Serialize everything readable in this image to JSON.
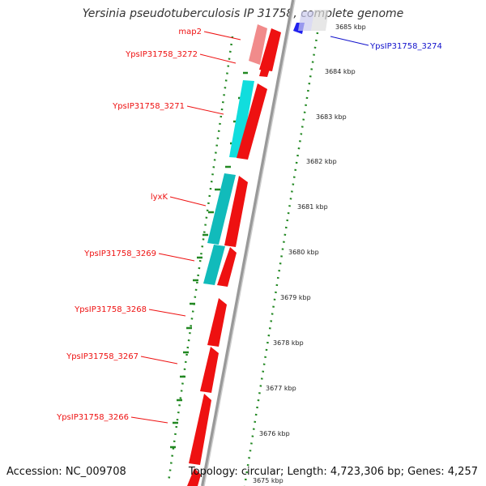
{
  "title": "Yersinia pseudotuberculosis IP 31758, complete genome",
  "accession_text": "Accession: NC_009708",
  "topology_text": "Topology: circular; Length: 4,723,306 bp; Genes: 4,257",
  "colors": {
    "forward_gene": "#ee1111",
    "reverse_gene": "#2222ee",
    "cds_cyan": "#11dddd",
    "cds_teal": "#11bbbb",
    "map2_pink": "#ee7777",
    "gc_dots": "#228822",
    "backbone": "#999999"
  },
  "labels": [
    {
      "text": "map2",
      "color": "#ee1111"
    },
    {
      "text": "YpsIP31758_3272",
      "color": "#ee1111"
    },
    {
      "text": "YpsIP31758_3271",
      "color": "#ee1111"
    },
    {
      "text": "lyxK",
      "color": "#ee1111"
    },
    {
      "text": "YpsIP31758_3269",
      "color": "#ee1111"
    },
    {
      "text": "YpsIP31758_3268",
      "color": "#ee1111"
    },
    {
      "text": "YpsIP31758_3267",
      "color": "#ee1111"
    },
    {
      "text": "YpsIP31758_3266",
      "color": "#ee1111"
    },
    {
      "text": "YpsIP31758_3274",
      "color": "#1111cc"
    }
  ],
  "ticks": [
    "3685 kbp",
    "3684 kbp",
    "3683 kbp",
    "3682 kbp",
    "3681 kbp",
    "3680 kbp",
    "3679 kbp",
    "3678 kbp",
    "3677 kbp",
    "3676 kbp",
    "3675 kbp"
  ]
}
